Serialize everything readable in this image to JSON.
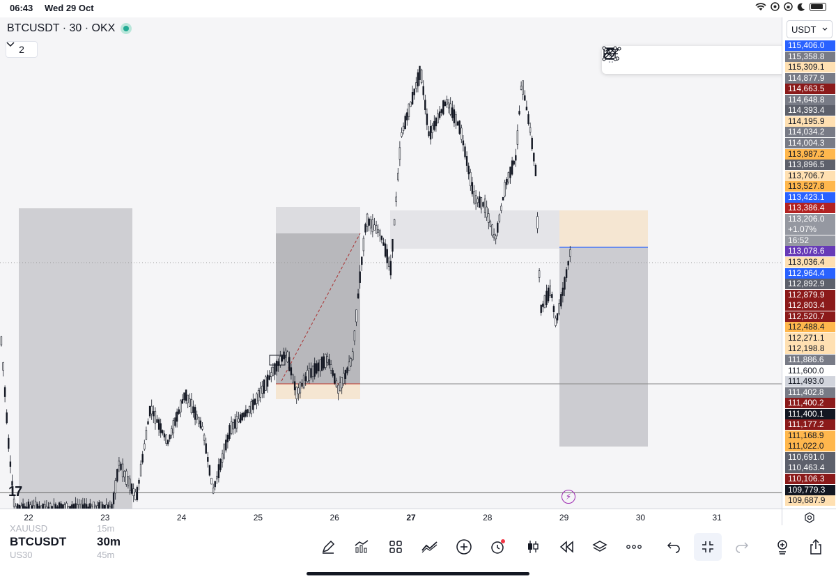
{
  "status_bar": {
    "time": "06:43",
    "date": "Wed 29 Oct",
    "icons": [
      "wifi-icon",
      "at-icon",
      "lock-rotation-icon",
      "moon-icon",
      "battery-icon"
    ]
  },
  "chart": {
    "title": "BTCUSDT · 30 · OKX",
    "indicators_count": "2",
    "currency": "USDT",
    "watermark": "17",
    "colors": {
      "up": "#ffffff",
      "down": "#131722",
      "zone_grey": "#c8c8cc",
      "zone_tan": "#f5e6d2",
      "blue_line": "#2962ff"
    }
  },
  "drawing_toolbar": {
    "tools": [
      "fib-retracement-icon",
      "trend-path-icon",
      "pitchfork-icon",
      "horizontal-ray-icon",
      "eraser-icon",
      "rectangle-icon",
      "trendline-icon"
    ]
  },
  "price_axis": {
    "labels": [
      {
        "text": "115,406.0",
        "color": "#2962ff"
      },
      {
        "text": "115,358.8",
        "color": "#787b86"
      },
      {
        "text": "115,309.1",
        "color": "#ffe0b2",
        "dark": true
      },
      {
        "text": "114,877.9",
        "color": "#787b86"
      },
      {
        "text": "114,663.5",
        "color": "#8b1a1a"
      },
      {
        "text": "114,648.8",
        "color": "#787b86"
      },
      {
        "text": "114,393.4",
        "color": "#5d606b"
      },
      {
        "text": "114,195.9",
        "color": "#ffe0b2",
        "dark": true
      },
      {
        "text": "114,034.2",
        "color": "#787b86"
      },
      {
        "text": "114,004.3",
        "color": "#787b86"
      },
      {
        "text": "113,987.2",
        "color": "#ffb74d",
        "dark": true
      },
      {
        "text": "113,896.5",
        "color": "#5d606b"
      },
      {
        "text": "113,706.7",
        "color": "#ffe0b2",
        "dark": true
      },
      {
        "text": "113,527.8",
        "color": "#ffb74d",
        "dark": true
      },
      {
        "text": "113,423.1",
        "color": "#2962ff"
      },
      {
        "text": "113,386.4",
        "color": "#b22222"
      },
      {
        "text": "113,206.0",
        "color": "#9598a1"
      },
      {
        "text": "+1.07%",
        "color": "#9598a1"
      },
      {
        "text": "16:52",
        "color": "#9598a1"
      },
      {
        "text": "113,078.6",
        "color": "#673ab7"
      },
      {
        "text": "113,036.4",
        "color": "#ffe0b2",
        "dark": true
      },
      {
        "text": "112,964.4",
        "color": "#2962ff"
      },
      {
        "text": "112,892.9",
        "color": "#5d606b"
      },
      {
        "text": "112,879.9",
        "color": "#8b1a1a"
      },
      {
        "text": "112,803.4",
        "color": "#8b1a1a"
      },
      {
        "text": "112,520.7",
        "color": "#8b1a1a"
      },
      {
        "text": "112,488.4",
        "color": "#ffb74d",
        "dark": true
      },
      {
        "text": "112,271.1",
        "color": "#ffe0b2",
        "dark": true
      },
      {
        "text": "112,198.8",
        "color": "#ffe0b2",
        "dark": true
      },
      {
        "text": "111,886.6",
        "color": "#787b86"
      },
      {
        "text": "111,600.0",
        "color": "#ffffff",
        "dark": true
      },
      {
        "text": "111,493.0",
        "color": "#d1d4dc",
        "dark": true
      },
      {
        "text": "111,402.8",
        "color": "#787b86"
      },
      {
        "text": "111,400.2",
        "color": "#8b1a1a"
      },
      {
        "text": "111,400.1",
        "color": "#131722"
      },
      {
        "text": "111,177.2",
        "color": "#8b1a1a"
      },
      {
        "text": "111,168.9",
        "color": "#ffb74d",
        "dark": true
      },
      {
        "text": "111,022.0",
        "color": "#ffb74d",
        "dark": true
      },
      {
        "text": "110,691.0",
        "color": "#5d606b"
      },
      {
        "text": "110,463.4",
        "color": "#5d606b"
      },
      {
        "text": "110,106.3",
        "color": "#8b1a1a"
      },
      {
        "text": "109,779.3",
        "color": "#131722"
      },
      {
        "text": "109,687.9",
        "color": "#ffe0b2",
        "dark": true
      }
    ]
  },
  "time_axis": {
    "labels": [
      "22",
      "23",
      "24",
      "25",
      "26",
      "27",
      "28",
      "29",
      "30",
      "31"
    ],
    "bold_index": 5
  },
  "bottom_bar": {
    "symbols_above": "XAUUSD",
    "symbol_current": "BTCUSDT",
    "symbol_below": "US30",
    "interval_above": "15m",
    "interval_current": "30m",
    "interval_below": "45m",
    "tools": [
      "drawing-pen-icon",
      "indicators-icon",
      "layouts-icon",
      "compare-icon",
      "add-icon",
      "alert-icon",
      "chart-type-icon",
      "replay-icon",
      "layers-icon",
      "more-icon",
      "undo-icon",
      "fullscreen-exit-icon",
      "redo-icon",
      "object-tree-icon",
      "share-icon"
    ]
  }
}
